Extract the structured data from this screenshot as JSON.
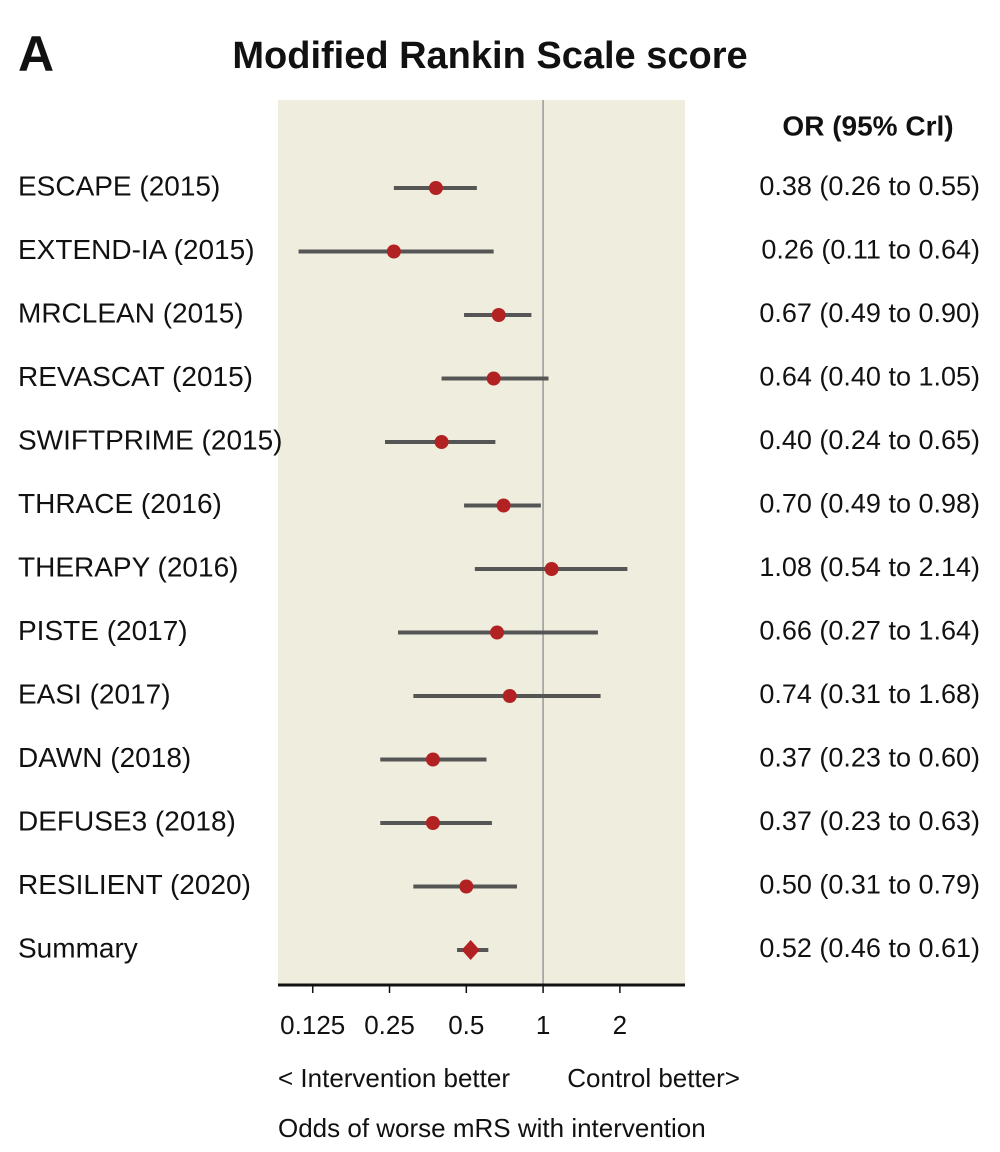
{
  "chart_data": {
    "type": "forest",
    "panel_label": "A",
    "title": "Modified Rankin Scale score",
    "column_header": "OR (95% Crl)",
    "categories": [
      "ESCAPE (2015)",
      "EXTEND-IA (2015)",
      "MRCLEAN (2015)",
      "REVASCAT (2015)",
      "SWIFTPRIME (2015)",
      "THRACE (2016)",
      "THERAPY (2016)",
      "PISTE (2017)",
      "EASI (2017)",
      "DAWN (2018)",
      "DEFUSE3 (2018)",
      "RESILIENT (2020)"
    ],
    "values": [
      0.38,
      0.26,
      0.67,
      0.64,
      0.4,
      0.7,
      1.08,
      0.66,
      0.74,
      0.37,
      0.37,
      0.5
    ],
    "lower": [
      0.26,
      0.11,
      0.49,
      0.4,
      0.24,
      0.49,
      0.54,
      0.27,
      0.31,
      0.23,
      0.23,
      0.31
    ],
    "upper": [
      0.55,
      0.64,
      0.9,
      1.05,
      0.65,
      0.98,
      2.14,
      1.64,
      1.68,
      0.6,
      0.63,
      0.79
    ],
    "value_labels": [
      "0.38 (0.26 to 0.55)",
      "0.26 (0.11 to 0.64)",
      "0.67 (0.49 to 0.90)",
      "0.64 (0.40 to 1.05)",
      "0.40 (0.24 to 0.65)",
      "0.70 (0.49 to 0.98)",
      "1.08 (0.54 to 2.14)",
      "0.66 (0.27 to 1.64)",
      "0.74 (0.31 to 1.68)",
      "0.37 (0.23 to 0.60)",
      "0.37 (0.23 to 0.63)",
      "0.50 (0.31 to 0.79)"
    ],
    "summary": {
      "name": "Summary",
      "value": 0.52,
      "lower": 0.46,
      "upper": 0.61,
      "value_label": "0.52 (0.46 to 0.61)"
    },
    "xlim": [
      0.1,
      3.6
    ],
    "xticks": [
      0.125,
      0.25,
      0.5,
      1,
      2
    ],
    "xscale": "log",
    "reference_line": 1,
    "annotation_left": "< Intervention better",
    "annotation_right": "Control better>",
    "xlabel": "Odds of worse mRS with intervention",
    "color": "#b22222",
    "interval_color": "#555555",
    "background": "#efedde"
  }
}
